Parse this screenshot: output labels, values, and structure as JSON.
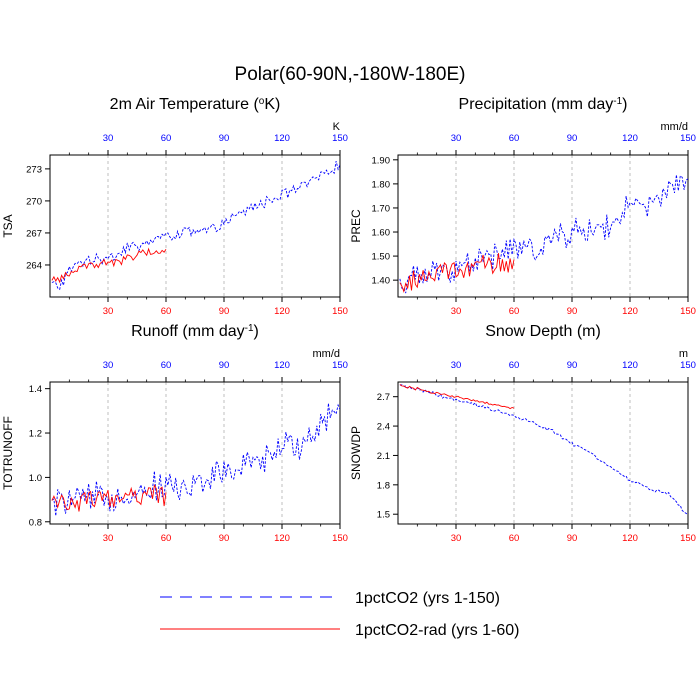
{
  "figure": {
    "title": "Polar(60-90N,-180W-180E)",
    "colors": {
      "series1": "#0000ff",
      "series2": "#ff0000",
      "grid": "#b0b0b0"
    }
  },
  "legend": [
    {
      "label": "1pctCO2 (yrs 1-150)",
      "color": "#0000ff",
      "dash": "dashed"
    },
    {
      "label": "1pctCO2-rad (yrs 1-60)",
      "color": "#ff0000",
      "dash": "solid"
    }
  ],
  "chart_data": [
    {
      "type": "line",
      "title": "2m Air Temperature (oK)",
      "title_text": "2m Air Temperature (",
      "title_sup": "o",
      "title_tail": "K)",
      "ylabel": "TSA",
      "units": "K",
      "xlim": [
        0,
        150
      ],
      "xticks": [
        30,
        60,
        90,
        120,
        150
      ],
      "ylim": [
        261,
        274.3
      ],
      "yticks": [
        264,
        267,
        270,
        273
      ],
      "ytick_labels": [
        "264",
        "267",
        "270",
        "273"
      ],
      "grid": "vertical dashed",
      "series": [
        {
          "name": "1pctCO2 (yrs 1-150)",
          "x_start": 1,
          "x_end": 150,
          "anchors": [
            [
              1,
              262.2
            ],
            [
              5,
              262.0
            ],
            [
              10,
              263.4
            ],
            [
              15,
              264.2
            ],
            [
              20,
              264.6
            ],
            [
              25,
              264.4
            ],
            [
              30,
              264.9
            ],
            [
              35,
              265.0
            ],
            [
              40,
              265.8
            ],
            [
              45,
              265.6
            ],
            [
              50,
              266.0
            ],
            [
              55,
              266.6
            ],
            [
              60,
              266.6
            ],
            [
              65,
              266.9
            ],
            [
              70,
              267.2
            ],
            [
              75,
              266.9
            ],
            [
              80,
              267.2
            ],
            [
              85,
              267.4
            ],
            [
              90,
              267.9
            ],
            [
              95,
              268.4
            ],
            [
              100,
              268.9
            ],
            [
              105,
              269.5
            ],
            [
              110,
              269.8
            ],
            [
              115,
              270.2
            ],
            [
              120,
              270.6
            ],
            [
              125,
              270.9
            ],
            [
              130,
              271.3
            ],
            [
              135,
              271.7
            ],
            [
              140,
              272.3
            ],
            [
              145,
              273.0
            ],
            [
              150,
              273.3
            ]
          ],
          "amplitude": 0.45
        },
        {
          "name": "1pctCO2-rad (yrs 1-60)",
          "x_start": 1,
          "x_end": 60,
          "anchors": [
            [
              1,
              262.4
            ],
            [
              10,
              263.2
            ],
            [
              20,
              264.0
            ],
            [
              30,
              264.2
            ],
            [
              40,
              264.6
            ],
            [
              50,
              265.2
            ],
            [
              60,
              265.3
            ]
          ],
          "amplitude": 0.35
        }
      ]
    },
    {
      "type": "line",
      "title": "Precipitation (mm day-1)",
      "title_text": "Precipitation (mm day",
      "title_sup": "-1",
      "title_tail": ")",
      "ylabel": "PREC",
      "units": "mm/d",
      "xlim": [
        0,
        150
      ],
      "xticks": [
        30,
        60,
        90,
        120,
        150
      ],
      "ylim": [
        1.33,
        1.92
      ],
      "yticks": [
        1.4,
        1.5,
        1.6,
        1.7,
        1.8,
        1.9
      ],
      "ytick_labels": [
        "1.40",
        "1.50",
        "1.60",
        "1.70",
        "1.80",
        "1.90"
      ],
      "grid": "vertical dashed",
      "series": [
        {
          "name": "1pctCO2 (yrs 1-150)",
          "x_start": 1,
          "x_end": 150,
          "anchors": [
            [
              1,
              1.38
            ],
            [
              10,
              1.41
            ],
            [
              20,
              1.43
            ],
            [
              30,
              1.46
            ],
            [
              40,
              1.48
            ],
            [
              50,
              1.5
            ],
            [
              60,
              1.53
            ],
            [
              70,
              1.53
            ],
            [
              80,
              1.57
            ],
            [
              90,
              1.6
            ],
            [
              100,
              1.61
            ],
            [
              110,
              1.63
            ],
            [
              120,
              1.7
            ],
            [
              130,
              1.7
            ],
            [
              140,
              1.77
            ],
            [
              150,
              1.83
            ]
          ],
          "amplitude": 0.05
        },
        {
          "name": "1pctCO2-rad (yrs 1-60)",
          "x_start": 1,
          "x_end": 60,
          "anchors": [
            [
              1,
              1.38
            ],
            [
              10,
              1.4
            ],
            [
              20,
              1.43
            ],
            [
              30,
              1.44
            ],
            [
              40,
              1.45
            ],
            [
              50,
              1.46
            ],
            [
              60,
              1.47
            ]
          ],
          "amplitude": 0.04
        }
      ]
    },
    {
      "type": "line",
      "title": "Runoff (mm day-1)",
      "title_text": "Runoff (mm day",
      "title_sup": "-1",
      "title_tail": ")",
      "ylabel": "TOTRUNOFF",
      "units": "mm/d",
      "xlim": [
        0,
        150
      ],
      "xticks": [
        30,
        60,
        90,
        120,
        150
      ],
      "ylim": [
        0.79,
        1.43
      ],
      "yticks": [
        0.8,
        1.0,
        1.2,
        1.4
      ],
      "ytick_labels": [
        "0.8",
        "1.0",
        "1.2",
        "1.4"
      ],
      "grid": "vertical dashed",
      "series": [
        {
          "name": "1pctCO2 (yrs 1-150)",
          "x_start": 1,
          "x_end": 150,
          "anchors": [
            [
              1,
              0.88
            ],
            [
              10,
              0.89
            ],
            [
              20,
              0.9
            ],
            [
              30,
              0.91
            ],
            [
              40,
              0.93
            ],
            [
              50,
              0.95
            ],
            [
              60,
              0.96
            ],
            [
              70,
              0.95
            ],
            [
              80,
              0.99
            ],
            [
              90,
              1.02
            ],
            [
              100,
              1.04
            ],
            [
              110,
              1.08
            ],
            [
              120,
              1.13
            ],
            [
              130,
              1.16
            ],
            [
              140,
              1.24
            ],
            [
              150,
              1.34
            ]
          ],
          "amplitude": 0.06
        },
        {
          "name": "1pctCO2-rad (yrs 1-60)",
          "x_start": 1,
          "x_end": 60,
          "anchors": [
            [
              1,
              0.88
            ],
            [
              10,
              0.89
            ],
            [
              20,
              0.9
            ],
            [
              30,
              0.91
            ],
            [
              40,
              0.91
            ],
            [
              50,
              0.92
            ],
            [
              60,
              0.92
            ]
          ],
          "amplitude": 0.04
        }
      ]
    },
    {
      "type": "line",
      "title": "Snow Depth (m)",
      "title_text": "Snow Depth (m)",
      "title_sup": "",
      "title_tail": "",
      "ylabel": "SNOWDP",
      "units": "m",
      "xlim": [
        0,
        150
      ],
      "xticks": [
        30,
        60,
        90,
        120,
        150
      ],
      "ylim": [
        1.4,
        2.85
      ],
      "yticks": [
        1.5,
        1.8,
        2.1,
        2.4,
        2.7
      ],
      "ytick_labels": [
        "1.5",
        "1.8",
        "2.1",
        "2.4",
        "2.7"
      ],
      "grid": "vertical dashed",
      "series": [
        {
          "name": "1pctCO2 (yrs 1-150)",
          "x_start": 1,
          "x_end": 150,
          "anchors": [
            [
              1,
              2.81
            ],
            [
              10,
              2.78
            ],
            [
              20,
              2.72
            ],
            [
              30,
              2.66
            ],
            [
              40,
              2.62
            ],
            [
              50,
              2.56
            ],
            [
              60,
              2.5
            ],
            [
              70,
              2.43
            ],
            [
              80,
              2.35
            ],
            [
              90,
              2.22
            ],
            [
              100,
              2.12
            ],
            [
              110,
              1.98
            ],
            [
              120,
              1.85
            ],
            [
              130,
              1.76
            ],
            [
              140,
              1.71
            ],
            [
              150,
              1.48
            ]
          ],
          "amplitude": 0.015
        },
        {
          "name": "1pctCO2-rad (yrs 1-60)",
          "x_start": 1,
          "x_end": 60,
          "anchors": [
            [
              1,
              2.82
            ],
            [
              10,
              2.78
            ],
            [
              20,
              2.73
            ],
            [
              30,
              2.7
            ],
            [
              40,
              2.66
            ],
            [
              50,
              2.62
            ],
            [
              60,
              2.58
            ]
          ],
          "amplitude": 0.012
        }
      ]
    }
  ]
}
